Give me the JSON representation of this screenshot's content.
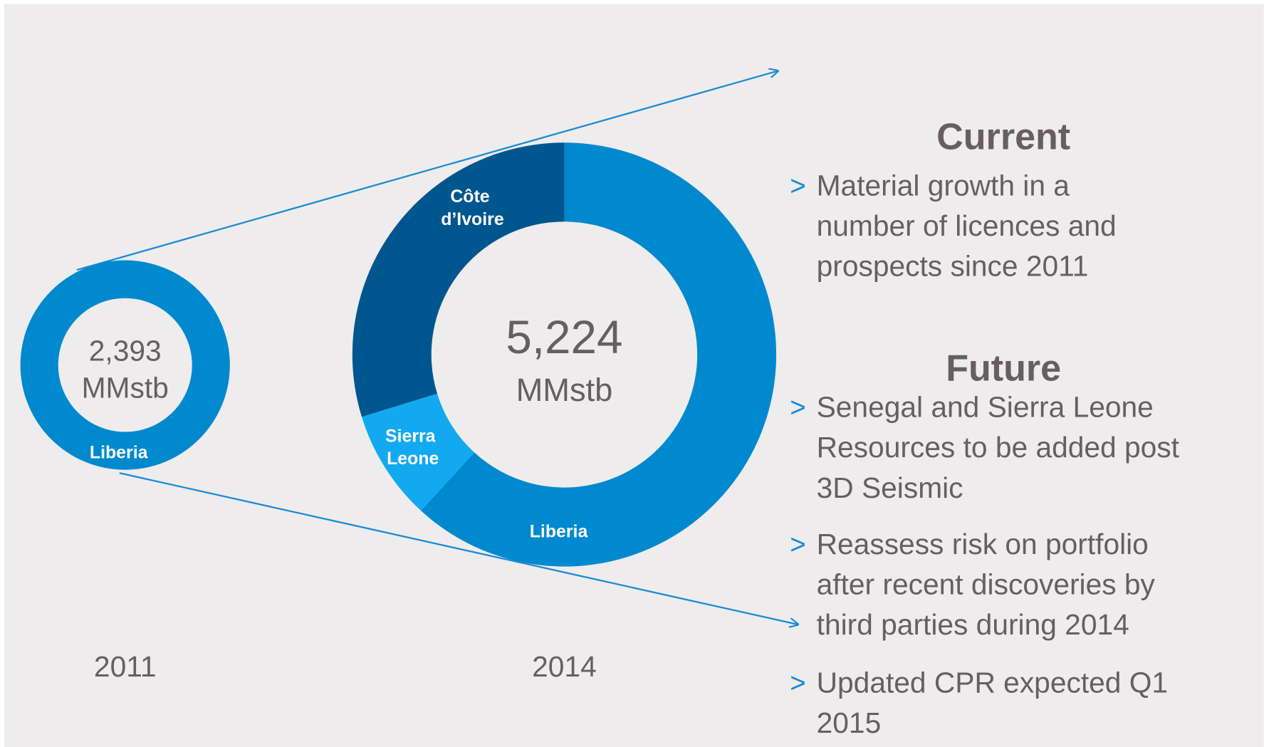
{
  "chart_data": [
    {
      "type": "donut",
      "x_label": "2011",
      "center": {
        "value": 2393,
        "label": "2,393"
      },
      "unit": "MMstb",
      "categories": [
        "Liberia"
      ],
      "values": [
        2393
      ],
      "colors": [
        "#0089cf"
      ]
    },
    {
      "type": "donut",
      "x_label": "2014",
      "center": {
        "value": 5224,
        "label": "5,224"
      },
      "unit": "MMstb",
      "categories": [
        "Liberia",
        "Sierra Leone",
        "Côte d’Ivoire"
      ],
      "values": [
        3230,
        440,
        1554
      ],
      "colors": [
        "#0089cf",
        "#12a9f0",
        "#00568e"
      ]
    }
  ],
  "panel": {
    "bullet": ">",
    "sections": [
      {
        "heading": "Current",
        "items": [
          [
            "Material growth in a",
            "number of licences and",
            "prospects since 2011"
          ]
        ]
      },
      {
        "heading": "Future",
        "items": [
          [
            "Senegal and Sierra Leone",
            "Resources to be added post",
            "3D Seismic"
          ],
          [
            "Reassess risk on portfolio",
            "after recent discoveries by",
            "third parties during 2014"
          ],
          [
            "Updated CPR expected Q1",
            "2015"
          ]
        ]
      }
    ]
  }
}
